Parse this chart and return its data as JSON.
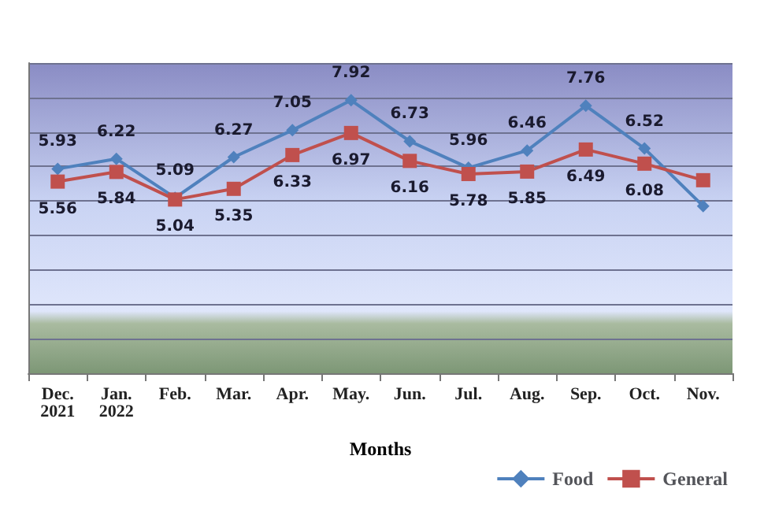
{
  "chart_data": {
    "type": "line",
    "xlabel": "Months",
    "categories": [
      "Dec.\n2021",
      "Jan.\n2022",
      "Feb.",
      "Mar.",
      "Apr.",
      "May.",
      "Jun.",
      "Jul.",
      "Aug.",
      "Sep.",
      "Oct.",
      "Nov."
    ],
    "series": [
      {
        "name": "Food",
        "color": "#4f81bd",
        "marker": "diamond",
        "values": [
          5.93,
          6.22,
          5.09,
          6.27,
          7.05,
          7.92,
          6.73,
          5.96,
          6.46,
          7.76,
          6.52,
          4.85
        ],
        "value_labels": [
          "5.93",
          "6.22",
          "5.09",
          "6.27",
          "7.05",
          "7.92",
          "6.73",
          "5.96",
          "6.46",
          "7.76",
          "6.52",
          null
        ]
      },
      {
        "name": "General",
        "color": "#c0504d",
        "marker": "square",
        "values": [
          5.56,
          5.84,
          5.04,
          5.35,
          6.33,
          6.97,
          6.16,
          5.78,
          5.85,
          6.49,
          6.08,
          5.6
        ],
        "value_labels": [
          "5.56",
          "5.84",
          "5.04",
          "5.35",
          "6.33",
          "6.97",
          "6.16",
          "5.78",
          "5.85",
          "6.49",
          "6.08",
          null
        ]
      }
    ],
    "ylim": [
      0,
      9
    ],
    "yticks": [
      0,
      1,
      2,
      3,
      4,
      5,
      6,
      7,
      8,
      9
    ],
    "grid": "y",
    "tick_labels": "x",
    "legend": "bottom right"
  }
}
